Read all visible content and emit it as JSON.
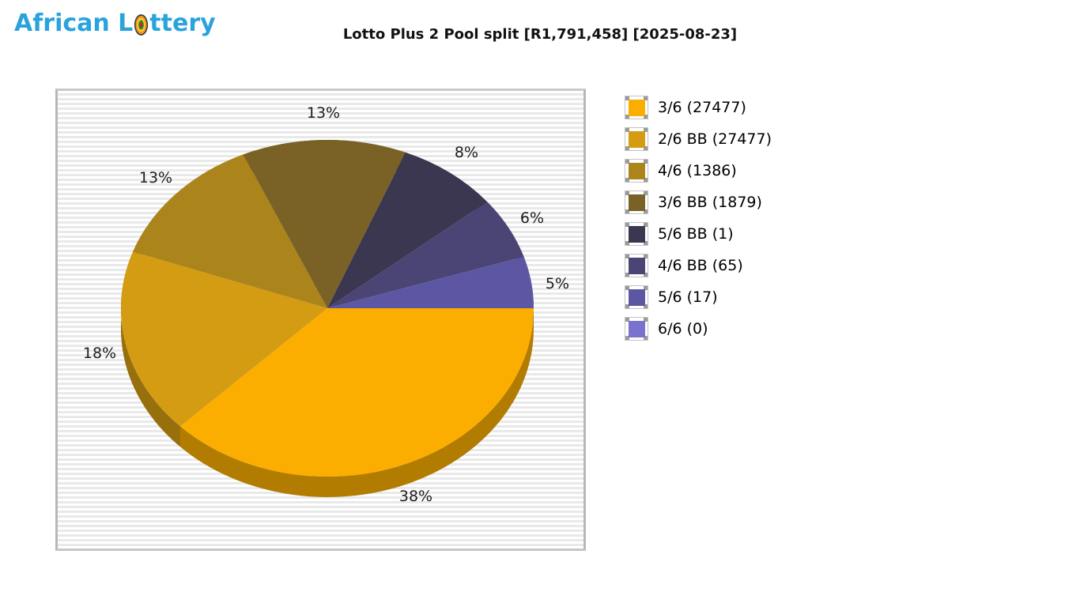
{
  "logo": {
    "text_before": "African L",
    "text_after": "ttery",
    "brand_color": "#2aa3dd"
  },
  "header": {
    "title": "Lotto Plus 2 Pool split [R1,791,458] [2025-08-23]"
  },
  "chart_data": {
    "type": "pie",
    "style": "3d",
    "title": "Lotto Plus 2 Pool split [R1,791,458] [2025-08-23]",
    "pool_total": "R1,791,458",
    "draw_date": "2025-08-23",
    "legend_position": "right",
    "labels": "percent-outside",
    "slices": [
      {
        "division": "3/6",
        "winners": 27477,
        "label": "3/6 (27477)",
        "percent": 38,
        "percent_label": "38%",
        "color": "#fbae00"
      },
      {
        "division": "2/6 BB",
        "winners": 27477,
        "label": "2/6 BB (27477)",
        "percent": 18,
        "percent_label": "18%",
        "color": "#d49c12"
      },
      {
        "division": "4/6",
        "winners": 1386,
        "label": "4/6 (1386)",
        "percent": 13,
        "percent_label": "13%",
        "color": "#ac841c"
      },
      {
        "division": "3/6 BB",
        "winners": 1879,
        "label": "3/6 BB (1879)",
        "percent": 13,
        "percent_label": "13%",
        "color": "#7a6226"
      },
      {
        "division": "5/6 BB",
        "winners": 1,
        "label": "5/6 BB (1)",
        "percent": 8,
        "percent_label": "8%",
        "color": "#3b3750"
      },
      {
        "division": "4/6 BB",
        "winners": 65,
        "label": "4/6 BB (65)",
        "percent": 6,
        "percent_label": "6%",
        "color": "#4a4574"
      },
      {
        "division": "5/6",
        "winners": 17,
        "label": "5/6 (17)",
        "percent": 5,
        "percent_label": "5%",
        "color": "#5d57a3"
      },
      {
        "division": "6/6",
        "winners": 0,
        "label": "6/6 (0)",
        "percent": 0,
        "percent_label": "",
        "color": "#7b72d0"
      }
    ]
  }
}
